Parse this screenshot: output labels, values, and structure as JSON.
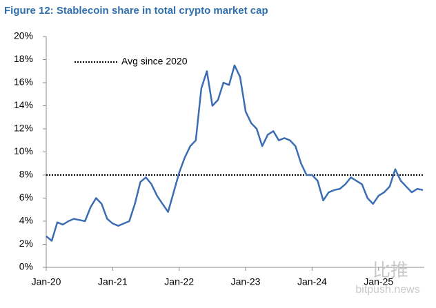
{
  "chart_data": {
    "type": "line",
    "title": "Figure 12: Stablecoin share in total crypto market cap",
    "categories": [
      "Jan-20",
      null,
      null,
      null,
      null,
      null,
      null,
      null,
      null,
      null,
      null,
      null,
      "Jan-21",
      null,
      null,
      null,
      null,
      null,
      null,
      null,
      null,
      null,
      null,
      null,
      "Jan-22",
      null,
      null,
      null,
      null,
      null,
      null,
      null,
      null,
      null,
      null,
      null,
      "Jan-23",
      null,
      null,
      null,
      null,
      null,
      null,
      null,
      null,
      null,
      null,
      null,
      "Jan-24",
      null,
      null,
      null,
      null,
      null,
      null,
      null,
      null,
      null,
      null,
      null,
      "Jan-25",
      null,
      null,
      null,
      null,
      null,
      null,
      null,
      null
    ],
    "series": [
      {
        "name": "Stablecoin share",
        "color": "#3b6db3",
        "values": [
          2.7,
          2.3,
          3.9,
          3.7,
          4.0,
          4.2,
          4.1,
          4.0,
          5.2,
          6.0,
          5.5,
          4.2,
          3.8,
          3.6,
          3.8,
          4.0,
          5.5,
          7.4,
          7.8,
          7.2,
          6.2,
          5.5,
          4.8,
          6.5,
          8.2,
          9.5,
          10.5,
          11.0,
          15.5,
          17.0,
          14.0,
          14.5,
          16.0,
          15.8,
          17.5,
          16.5,
          13.5,
          12.5,
          12.0,
          10.5,
          11.5,
          11.8,
          11.0,
          11.2,
          11.0,
          10.5,
          9.0,
          8.0,
          8.0,
          7.5,
          5.8,
          6.5,
          6.7,
          6.8,
          7.2,
          7.8,
          7.5,
          7.2,
          6.0,
          5.5,
          6.2,
          6.5,
          7.0,
          8.5,
          7.5,
          7.0,
          6.5,
          6.8,
          6.7
        ]
      }
    ],
    "average": {
      "label": "Avg since 2020",
      "value": 8,
      "color": "#000000"
    },
    "ylim": [
      0,
      20
    ],
    "yticks": [
      {
        "value": 0,
        "label": "0%"
      },
      {
        "value": 2,
        "label": "2%"
      },
      {
        "value": 4,
        "label": "4%"
      },
      {
        "value": 6,
        "label": "6%"
      },
      {
        "value": 8,
        "label": "8%"
      },
      {
        "value": 10,
        "label": "10%"
      },
      {
        "value": 12,
        "label": "12%"
      },
      {
        "value": 14,
        "label": "14%"
      },
      {
        "value": 16,
        "label": "16%"
      },
      {
        "value": 18,
        "label": "18%"
      },
      {
        "value": 20,
        "label": "20%"
      }
    ],
    "grid": false,
    "watermark": {
      "brand": "比推",
      "site": "bitpush.news"
    }
  }
}
